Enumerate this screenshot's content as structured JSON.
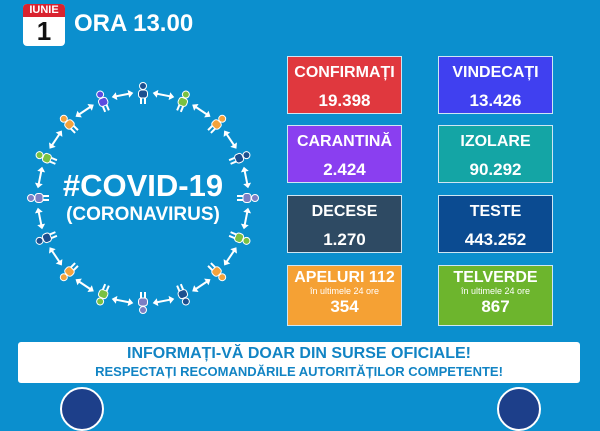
{
  "header": {
    "month": "IUNIE",
    "day": "1",
    "time": "ORA 13.00"
  },
  "graphic": {
    "title": "#COVID-19",
    "subtitle": "(CORONAVIRUS)",
    "figure_colors": [
      "#1c4f8f",
      "#7ac142",
      "#f4a23c",
      "#1c4f8f",
      "#7b7fc4",
      "#7ac142",
      "#f4a23c",
      "#1c4f8f",
      "#7b7fc4",
      "#7ac142",
      "#f4a23c",
      "#1c4f8f",
      "#7b7fc4",
      "#7ac142",
      "#f4a23c",
      "#5b4ce0"
    ]
  },
  "stats": [
    {
      "label": "CONFIRMAȚI",
      "value": "19.398",
      "color": "#e0383e"
    },
    {
      "label": "VINDECAȚI",
      "value": "13.426",
      "color": "#4040f0"
    },
    {
      "label": "CARANTINĂ",
      "value": "2.424",
      "color": "#8a3ff0"
    },
    {
      "label": "IZOLARE",
      "value": "90.292",
      "color": "#14a5a5"
    },
    {
      "label": "DECESE",
      "value": "1.270",
      "color": "#2e4a63"
    },
    {
      "label": "TESTE",
      "value": "443.252",
      "color": "#0b4b91"
    },
    {
      "label": "APELURI 112",
      "sub": "în ultimele 24 ore",
      "value": "354",
      "color": "#f5a134"
    },
    {
      "label": "TELVERDE",
      "sub": "în ultimele 24 ore",
      "value": "867",
      "color": "#6db52d"
    }
  ],
  "banner": {
    "line1": "INFORMAȚI-VĂ DOAR DIN SURSE OFICIALE!",
    "line2": "RESPECTAȚI RECOMANDĂRILE AUTORITĂȚILOR COMPETENTE!"
  }
}
